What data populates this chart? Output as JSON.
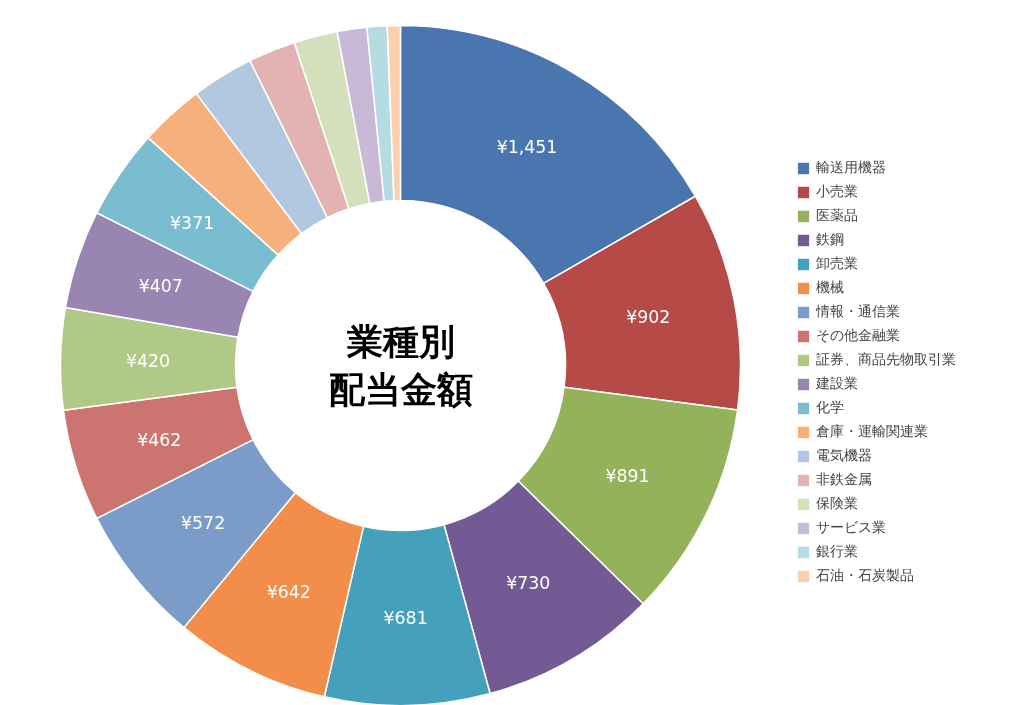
{
  "chart_data": {
    "type": "donut",
    "title": "業種別配当金額",
    "categories": [
      "輸送用機器",
      "小売業",
      "医薬品",
      "鉄鋼",
      "卸売業",
      "機械",
      "情報・通信業",
      "その他金融業",
      "証券、商品先物取引業",
      "建設業",
      "化学",
      "倉庫・運輸関連業",
      "電気機器",
      "非鉄金属",
      "保険業",
      "サービス業",
      "銀行業",
      "石油・石炭製品"
    ],
    "values": [
      1451,
      902,
      891,
      730,
      681,
      642,
      572,
      462,
      420,
      407,
      371,
      266,
      256,
      195,
      180,
      122,
      83,
      54
    ],
    "value_labels": [
      "¥1,451",
      "¥902",
      "¥891",
      "¥730",
      "¥681",
      "¥642",
      "¥572",
      "¥462",
      "¥420",
      "¥407",
      "¥371",
      null,
      null,
      null,
      null,
      null,
      null,
      null
    ],
    "colors": [
      "#4a76b0",
      "#b54a46",
      "#93b25a",
      "#735a95",
      "#45a0bc",
      "#f28e4a",
      "#7b9cc8",
      "#cc7570",
      "#b0c986",
      "#9985b2",
      "#7bbdd0",
      "#f5b07c",
      "#b2c7e0",
      "#e3b2b2",
      "#d3e0bb",
      "#c8bad7",
      "#b5dbe3",
      "#fbd0ad"
    ],
    "legend": "right"
  }
}
